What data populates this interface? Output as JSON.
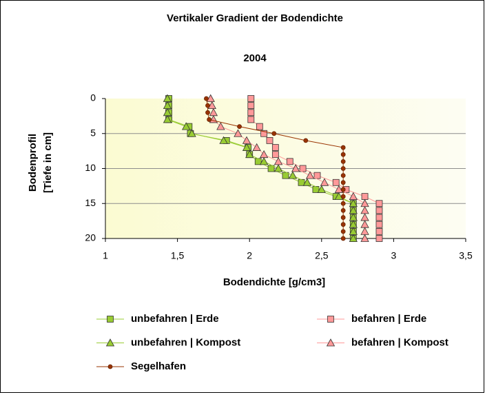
{
  "chart_data": {
    "type": "scatter-line",
    "title": "Vertikaler Gradient der Bodendichte",
    "subtitle": "2004",
    "xlabel": "Bodendichte [g/cm3]",
    "ylabel": [
      "Bodenprofil",
      "[Tiefe in cm]"
    ],
    "xlim": [
      1,
      3.5
    ],
    "xticks": [
      1,
      {
        "value": 1.5,
        "label": "1,5"
      },
      2,
      {
        "value": 2.5,
        "label": "2,5"
      },
      3,
      {
        "value": 3.5,
        "label": "3,5"
      }
    ],
    "ylim": [
      0,
      20
    ],
    "yticks": [
      0,
      5,
      10,
      15,
      20
    ],
    "y_inverted": true,
    "grid": true,
    "series": [
      {
        "name": "unbefahren | Erde",
        "color": "#99cc33",
        "marker": "square",
        "y": [
          0,
          1,
          2,
          3,
          4,
          5,
          6,
          7,
          8,
          9,
          10,
          11,
          12,
          13,
          14,
          15,
          16,
          17,
          18,
          19,
          20
        ],
        "values": [
          1.44,
          1.44,
          1.44,
          1.44,
          1.58,
          1.59,
          1.84,
          1.99,
          2.0,
          2.06,
          2.15,
          2.25,
          2.36,
          2.46,
          2.6,
          2.72,
          2.72,
          2.72,
          2.72,
          2.72,
          2.72
        ]
      },
      {
        "name": "befahren | Erde",
        "color": "#ff9999",
        "marker": "square",
        "y": [
          0,
          1,
          2,
          3,
          4,
          5,
          6,
          7,
          8,
          9,
          10,
          11,
          12,
          13,
          14,
          15,
          16,
          17,
          18,
          19,
          20
        ],
        "values": [
          2.01,
          2.01,
          2.01,
          2.01,
          2.07,
          2.1,
          2.14,
          2.18,
          2.18,
          2.28,
          2.37,
          2.47,
          2.6,
          2.67,
          2.8,
          2.9,
          2.9,
          2.9,
          2.9,
          2.9,
          2.9
        ]
      },
      {
        "name": "unbefahren | Kompost",
        "color": "#99cc33",
        "marker": "triangle",
        "y": [
          0,
          1,
          2,
          3,
          4,
          5,
          6,
          7,
          8,
          9,
          10,
          11,
          12,
          13,
          14,
          15,
          16,
          17,
          18,
          19,
          20
        ],
        "values": [
          1.43,
          1.43,
          1.43,
          1.43,
          1.56,
          1.6,
          1.82,
          1.98,
          2.0,
          2.1,
          2.2,
          2.3,
          2.4,
          2.5,
          2.62,
          2.72,
          2.72,
          2.72,
          2.72,
          2.72,
          2.72
        ]
      },
      {
        "name": "befahren | Kompost",
        "color": "#ff9999",
        "marker": "triangle",
        "y": [
          0,
          1,
          2,
          3,
          4,
          5,
          6,
          7,
          8,
          9,
          10,
          11,
          12,
          13,
          14,
          15,
          16,
          17,
          18,
          19,
          20
        ],
        "values": [
          1.73,
          1.74,
          1.75,
          1.75,
          1.8,
          1.92,
          1.98,
          2.05,
          2.1,
          2.2,
          2.32,
          2.42,
          2.52,
          2.62,
          2.72,
          2.8,
          2.8,
          2.8,
          2.8,
          2.8,
          2.8
        ]
      },
      {
        "name": "Segelhafen",
        "color": "#993300",
        "marker": "circle",
        "y": [
          0,
          1,
          2,
          3,
          4,
          5,
          6,
          7,
          8,
          9,
          10,
          11,
          12,
          13,
          14,
          15,
          16,
          17,
          18,
          19,
          20
        ],
        "values": [
          1.7,
          1.71,
          1.71,
          1.72,
          1.93,
          2.17,
          2.39,
          2.65,
          2.65,
          2.65,
          2.65,
          2.65,
          2.65,
          2.65,
          2.65,
          2.65,
          2.65,
          2.65,
          2.65,
          2.65,
          2.65
        ]
      }
    ]
  }
}
